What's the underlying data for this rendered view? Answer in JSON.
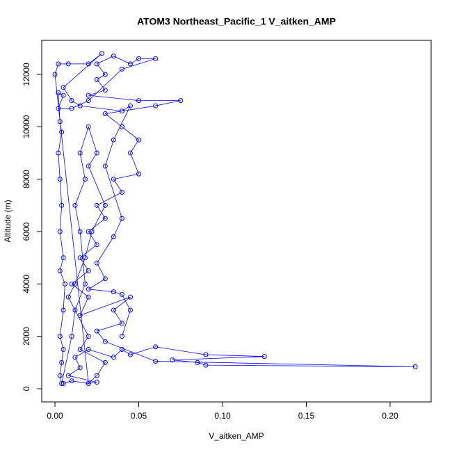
{
  "chart_data": {
    "type": "scatter",
    "lines": true,
    "color": "#0000ff",
    "title": "ATOM3 Northeast_Pacific_1 V_aitken_AMP",
    "x_label": "V_aitken_AMP",
    "y_label": "Altitude (m)",
    "xlim": [
      -0.0079,
      0.2245
    ],
    "ylim": [
      -504,
      13300
    ],
    "xticks": [
      {
        "value": 0,
        "label": "0.00"
      },
      {
        "value": 0.05,
        "label": "0.05"
      },
      {
        "value": 0.1,
        "label": "0.10"
      },
      {
        "value": 0.15,
        "label": "0.15"
      },
      {
        "value": 0.2,
        "label": "0.20"
      }
    ],
    "yticks": [
      0,
      2000,
      4000,
      6000,
      8000,
      10000,
      12000
    ],
    "x": [
      0.005,
      0.01,
      0.02,
      0.025,
      0.008,
      0.015,
      0.012,
      0.02,
      0.035,
      0.04,
      0.045,
      0.06,
      0.09,
      0.125,
      0.07,
      0.085,
      0.09,
      0.215,
      0.06,
      0.03,
      0.025,
      0.04,
      0.035,
      0.045,
      0.015,
      0.02,
      0.01,
      0.02,
      0.015,
      0.025,
      0.02,
      0.03,
      0.025,
      0.04,
      0.035,
      0.05,
      0.045,
      0.05,
      0.04,
      0.03,
      0.06,
      0.075,
      0.05,
      0.02,
      0.03,
      0.025,
      0.03,
      0.025,
      0.035,
      0.045,
      0.05,
      0.06,
      0.04,
      0.02,
      0.01,
      0.002,
      0.005,
      0.002,
      0.003,
      0.004,
      0.002,
      0.003,
      0.004,
      0.003,
      0.005,
      0.003,
      0.006,
      0.005,
      0.003,
      0.005,
      0.004,
      0.003,
      0.004,
      0.01,
      0.012,
      0.018,
      0.015,
      0.012,
      0.018,
      0.015,
      0.02,
      0.025,
      0.02,
      0.03,
      0.022,
      0.018,
      0.012,
      0.008,
      0.02,
      0.015,
      0.03,
      0.025,
      0.02,
      0.0,
      0.002,
      0.008,
      0.02,
      0.028,
      0.005,
      0.01,
      0.015,
      0.04,
      0.045,
      0.035,
      0.03,
      0.04,
      0.035,
      0.025,
      0.03,
      0.02,
      0.035,
      0.04,
      0.045,
      0.04
    ],
    "values": [
      200,
      300,
      200,
      250,
      500,
      800,
      1200,
      1500,
      1200,
      1500,
      1300,
      1600,
      1300,
      1230,
      1100,
      1000,
      900,
      840,
      1050,
      1800,
      2200,
      2500,
      3000,
      3500,
      2800,
      3500,
      4000,
      4500,
      5000,
      5500,
      6000,
      6500,
      7000,
      7500,
      8000,
      8200,
      9000,
      9500,
      10000,
      10500,
      10800,
      11000,
      11000,
      11200,
      11400,
      11800,
      12000,
      12400,
      12700,
      12400,
      12600,
      12600,
      12200,
      11000,
      10700,
      10700,
      11200,
      11300,
      10200,
      9800,
      9000,
      8000,
      7000,
      6000,
      5000,
      4500,
      4000,
      3000,
      2000,
      1500,
      1000,
      500,
      200,
      2000,
      3000,
      4000,
      6000,
      7000,
      8000,
      9000,
      10000,
      9000,
      8500,
      7000,
      6000,
      5000,
      4000,
      3500,
      2000,
      1500,
      1000,
      500,
      200,
      12000,
      12400,
      12400,
      12400,
      12800,
      11500,
      11000,
      10800,
      10600,
      10800,
      9500,
      8500,
      6500,
      5800,
      4800,
      4200,
      3800,
      3700,
      3600,
      3000,
      2000
    ]
  }
}
